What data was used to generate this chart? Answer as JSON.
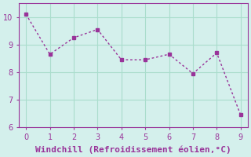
{
  "x": [
    0,
    1,
    2,
    3,
    4,
    5,
    6,
    7,
    8,
    9
  ],
  "y": [
    10.1,
    8.65,
    9.25,
    9.55,
    8.45,
    8.45,
    8.65,
    7.95,
    8.7,
    6.45
  ],
  "line_color": "#993399",
  "marker": "s",
  "marker_size": 3,
  "background_color": "#d4f0ec",
  "grid_color": "#aaddcc",
  "xlabel": "Windchill (Refroidissement éolien,°C)",
  "xlabel_color": "#993399",
  "xlabel_fontsize": 8,
  "tick_color": "#993399",
  "tick_fontsize": 7,
  "ylim": [
    6,
    10.5
  ],
  "xlim": [
    -0.3,
    9.3
  ],
  "yticks": [
    6,
    7,
    8,
    9,
    10
  ],
  "xticks": [
    0,
    1,
    2,
    3,
    4,
    5,
    6,
    7,
    8,
    9
  ]
}
